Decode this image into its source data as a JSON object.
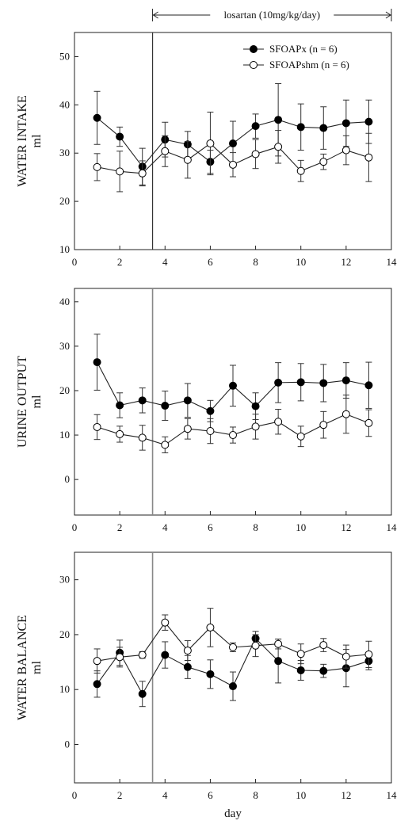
{
  "chart_data": [
    {
      "type": "line",
      "ylabel_line1": "WATER INTAKE",
      "ylabel_line2": "ml",
      "ylim": [
        10,
        55
      ],
      "yticks": [
        10,
        20,
        30,
        40,
        50
      ],
      "xlim": [
        0,
        14
      ],
      "xticks": [
        0,
        2,
        4,
        6,
        8,
        10,
        12,
        14
      ],
      "marker_x": 3.45,
      "annotation": {
        "text": "losartan (10mg/kg/day)",
        "x_start": 3.45,
        "x_end": 14
      },
      "legend": {
        "position": "top-right"
      },
      "series": [
        {
          "name": "SFOAPx (n = 6)",
          "marker": "filled",
          "x": [
            1,
            2,
            3,
            4,
            5,
            6,
            7,
            8,
            9,
            10,
            11,
            12,
            13
          ],
          "y": [
            37.3,
            33.4,
            27.2,
            32.8,
            31.8,
            28.2,
            32.0,
            35.6,
            36.9,
            35.4,
            35.2,
            36.2,
            36.5
          ],
          "err": [
            5.5,
            2.0,
            3.8,
            3.6,
            2.7,
            2.4,
            4.6,
            2.5,
            7.5,
            4.8,
            4.4,
            4.8,
            4.5
          ]
        },
        {
          "name": "SFOAPshm (n = 6)",
          "marker": "open",
          "x": [
            1,
            2,
            3,
            4,
            5,
            6,
            7,
            8,
            9,
            10,
            11,
            12,
            13
          ],
          "y": [
            27.1,
            26.2,
            25.8,
            30.4,
            28.6,
            32.0,
            27.6,
            29.8,
            31.3,
            26.3,
            28.2,
            30.6,
            29.1
          ],
          "err": [
            2.8,
            4.2,
            2.6,
            3.2,
            3.8,
            6.5,
            2.5,
            3.0,
            3.4,
            2.2,
            1.6,
            3.0,
            5.0
          ]
        }
      ]
    },
    {
      "type": "line",
      "ylabel_line1": "URINE OUTPUT",
      "ylabel_line2": "ml",
      "ylim": [
        -8,
        43
      ],
      "yticks": [
        0,
        10,
        20,
        30,
        40
      ],
      "xlim": [
        0,
        14
      ],
      "xticks": [
        0,
        2,
        4,
        6,
        8,
        10,
        12,
        14
      ],
      "marker_x": 3.45,
      "series": [
        {
          "name": "SFOAPx (n = 6)",
          "marker": "filled",
          "x": [
            1,
            2,
            3,
            4,
            5,
            6,
            7,
            8,
            9,
            10,
            11,
            12,
            13
          ],
          "y": [
            26.4,
            16.7,
            17.8,
            16.6,
            17.8,
            15.4,
            21.1,
            16.5,
            21.8,
            21.9,
            21.7,
            22.3,
            21.2
          ],
          "err": [
            6.3,
            2.8,
            2.8,
            3.3,
            3.8,
            2.4,
            4.6,
            3.0,
            4.5,
            4.2,
            4.2,
            4.0,
            5.2
          ]
        },
        {
          "name": "SFOAPshm (n = 6)",
          "marker": "open",
          "x": [
            1,
            2,
            3,
            4,
            5,
            6,
            7,
            8,
            9,
            10,
            11,
            12,
            13
          ],
          "y": [
            11.8,
            10.2,
            9.4,
            7.8,
            11.4,
            10.9,
            10.0,
            11.9,
            13.0,
            9.7,
            12.3,
            14.7,
            12.7
          ],
          "err": [
            2.8,
            1.8,
            2.8,
            1.8,
            2.3,
            2.8,
            1.8,
            2.8,
            2.8,
            2.3,
            3.0,
            4.3,
            3.0
          ]
        }
      ]
    },
    {
      "type": "line",
      "ylabel_line1": "WATER BALANCE",
      "ylabel_line2": "ml",
      "ylim": [
        -7,
        35
      ],
      "yticks": [
        0,
        10,
        20,
        30
      ],
      "xlim": [
        0,
        14
      ],
      "xticks": [
        0,
        2,
        4,
        6,
        8,
        10,
        12,
        14
      ],
      "xlabel": "day",
      "marker_x": 3.45,
      "series": [
        {
          "name": "SFOAPx (n = 6)",
          "marker": "filled",
          "x": [
            1,
            2,
            3,
            4,
            5,
            6,
            7,
            8,
            9,
            10,
            11,
            12,
            13
          ],
          "y": [
            11.0,
            16.7,
            9.2,
            16.3,
            14.1,
            12.8,
            10.6,
            19.3,
            15.2,
            13.5,
            13.4,
            13.9,
            15.2
          ],
          "err": [
            2.4,
            2.3,
            2.3,
            2.4,
            2.1,
            2.6,
            2.6,
            1.3,
            4.0,
            1.8,
            1.2,
            3.4,
            1.6
          ]
        },
        {
          "name": "SFOAPshm (n = 6)",
          "marker": "open",
          "x": [
            1,
            2,
            3,
            4,
            5,
            6,
            7,
            8,
            9,
            10,
            11,
            12,
            13
          ],
          "y": [
            15.2,
            15.9,
            16.3,
            22.2,
            17.1,
            21.3,
            17.7,
            18.0,
            18.3,
            16.5,
            18.1,
            16.0,
            16.4
          ],
          "err": [
            2.2,
            1.8,
            0.6,
            1.4,
            1.8,
            3.5,
            0.8,
            2.0,
            0.9,
            1.8,
            1.2,
            2.1,
            2.4
          ]
        }
      ]
    }
  ]
}
